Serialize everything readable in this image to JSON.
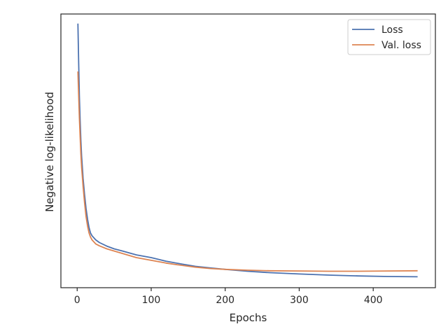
{
  "chart_data": {
    "type": "line",
    "title": "",
    "xlabel": "Epochs",
    "ylabel": "Negative log-likelihood",
    "xlim": [
      -22,
      484
    ],
    "ylim": [
      0.0,
      1.0
    ],
    "xticks": [
      0,
      100,
      200,
      300,
      400
    ],
    "yticks": [],
    "grid": false,
    "legend_position": "top-right",
    "series": [
      {
        "name": "Loss",
        "color": "#4c72b0",
        "x": [
          1,
          2,
          3,
          4,
          5,
          6,
          8,
          10,
          12,
          14,
          16,
          18,
          20,
          25,
          30,
          40,
          50,
          60,
          80,
          100,
          120,
          140,
          160,
          180,
          200,
          230,
          260,
          300,
          340,
          380,
          420,
          460
        ],
        "y": [
          0.965,
          0.82,
          0.7,
          0.61,
          0.54,
          0.48,
          0.4,
          0.34,
          0.29,
          0.25,
          0.22,
          0.2,
          0.19,
          0.175,
          0.165,
          0.152,
          0.142,
          0.135,
          0.12,
          0.11,
          0.097,
          0.087,
          0.078,
          0.072,
          0.067,
          0.06,
          0.055,
          0.05,
          0.046,
          0.043,
          0.041,
          0.04
        ]
      },
      {
        "name": "Val. loss",
        "color": "#dd8452",
        "x": [
          1,
          2,
          3,
          4,
          5,
          6,
          8,
          10,
          12,
          14,
          16,
          18,
          20,
          25,
          30,
          40,
          50,
          60,
          80,
          100,
          120,
          140,
          160,
          180,
          200,
          230,
          260,
          300,
          340,
          380,
          420,
          460
        ],
        "y": [
          0.79,
          0.7,
          0.62,
          0.55,
          0.49,
          0.44,
          0.37,
          0.31,
          0.26,
          0.225,
          0.2,
          0.185,
          0.175,
          0.16,
          0.153,
          0.142,
          0.134,
          0.126,
          0.11,
          0.1,
          0.09,
          0.082,
          0.075,
          0.07,
          0.067,
          0.064,
          0.062,
          0.061,
          0.06,
          0.06,
          0.061,
          0.062
        ]
      }
    ]
  }
}
